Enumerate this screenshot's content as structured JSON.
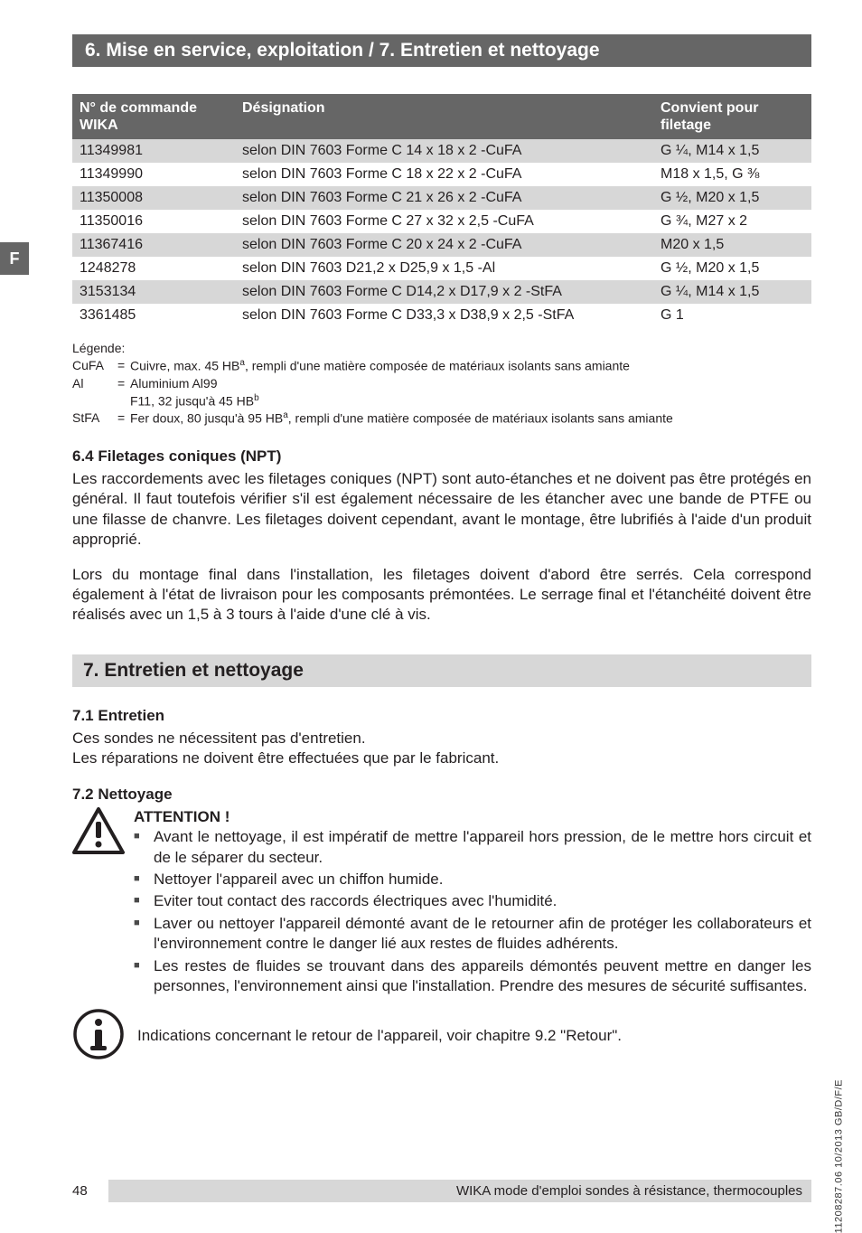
{
  "tab": "F",
  "banner": "6. Mise en service, exploitation / 7. Entretien et nettoyage",
  "table": {
    "headers": {
      "num_l1": "N° de commande",
      "num_l2": "WIKA",
      "desig": "Désignation",
      "fit_l1": "Convient pour",
      "fit_l2": "filetage"
    },
    "rows": [
      {
        "num": "11349981",
        "desig": "selon DIN 7603 Forme C 14 x 18 x 2 -CuFA",
        "fit": "G ¼, M14 x 1,5",
        "alt": true
      },
      {
        "num": "11349990",
        "desig": "selon DIN 7603 Forme C 18 x 22 x 2 -CuFA",
        "fit": "M18 x 1,5, G ⅜",
        "alt": false
      },
      {
        "num": "11350008",
        "desig": "selon DIN 7603 Forme C 21 x 26 x 2 -CuFA",
        "fit": "G ½, M20 x 1,5",
        "alt": true
      },
      {
        "num": "11350016",
        "desig": "selon DIN 7603 Forme C 27 x 32 x 2,5 -CuFA",
        "fit": "G ¾, M27 x 2",
        "alt": false
      },
      {
        "num": "11367416",
        "desig": "selon DIN 7603 Forme C 20 x 24 x 2 -CuFA",
        "fit": "M20 x 1,5",
        "alt": true
      },
      {
        "num": "1248278",
        "desig": "selon DIN 7603 D21,2 x D25,9 x 1,5 -Al",
        "fit": "G ½, M20 x 1,5",
        "alt": false
      },
      {
        "num": "3153134",
        "desig": "selon DIN 7603 Forme C D14,2 x D17,9 x 2 -StFA",
        "fit": "G ¼, M14 x 1,5",
        "alt": true
      },
      {
        "num": "3361485",
        "desig": "selon DIN 7603 Forme C D33,3 x D38,9 x 2,5 -StFA",
        "fit": "G 1",
        "alt": false
      }
    ]
  },
  "legend": {
    "title": "Légende:",
    "cufa_key": "CuFA",
    "cufa_pre": "Cuivre, max. 45 HB",
    "cufa_post": ", rempli d'une matière composée de matériaux isolants sans amiante",
    "al_key": "Al",
    "al_val": "Aluminium Al99",
    "al_line2_pre": "F11, 32 jusqu'à 45 HB",
    "stfa_key": "StFA",
    "stfa_pre": "Fer doux, 80 jusqu'à 95 HB",
    "stfa_post": ", rempli d'une matière composée de matériaux isolants sans amiante"
  },
  "sec64": {
    "title": "6.4 Filetages coniques (NPT)",
    "p1": "Les raccordements avec les filetages coniques (NPT) sont auto-étanches et ne doivent pas être protégés en général. Il faut toutefois vérifier s'il est également nécessaire de les étancher avec une bande de PTFE ou une filasse de chanvre. Les filetages doivent cependant, avant le monta­ge, être lubrifiés à l'aide d'un produit approprié.",
    "p2": "Lors du montage final dans l'installation, les filetages doivent d'abord être serrés. Cela correspond également à l'état de livraison pour les composants prémontées. Le serrage final et l'étanchéité doivent être réalisés avec un 1,5 à 3 tours à l'aide d'une clé à vis."
  },
  "sec7": {
    "heading": "7. Entretien et nettoyage",
    "s71_title": "7.1 Entretien",
    "s71_l1": "Ces sondes ne nécessitent pas d'entretien.",
    "s71_l2": "Les réparations ne doivent être effectuées que par le fabricant.",
    "s72_title": "7.2 Nettoyage",
    "attention": "ATTENTION !",
    "bullets": [
      "Avant le nettoyage, il est impératif de mettre l'appareil hors pression, de le mettre hors circuit et de le séparer du secteur.",
      "Nettoyer l'appareil avec un chiffon humide.",
      "Eviter tout contact des raccords électriques avec l'humidité.",
      "Laver ou nettoyer l'appareil démonté avant de le retourner afin de protéger les collaborateurs et l'environnement contre le danger lié aux restes de fluides adhérents.",
      "Les restes de fluides se trouvant dans des appareils démontés peuvent mettre en danger les personnes, l'environnement ainsi que l'installation. Prendre des mesures de sécurité suffisantes."
    ],
    "info": "Indications concernant le retour de l'appareil, voir chapitre 9.2 \"Retour\"."
  },
  "footer": {
    "page": "48",
    "text": "WIKA mode d'emploi sondes à résistance, thermocouples"
  },
  "vcode": "11208287.06 10/2013 GB/D/F/E"
}
